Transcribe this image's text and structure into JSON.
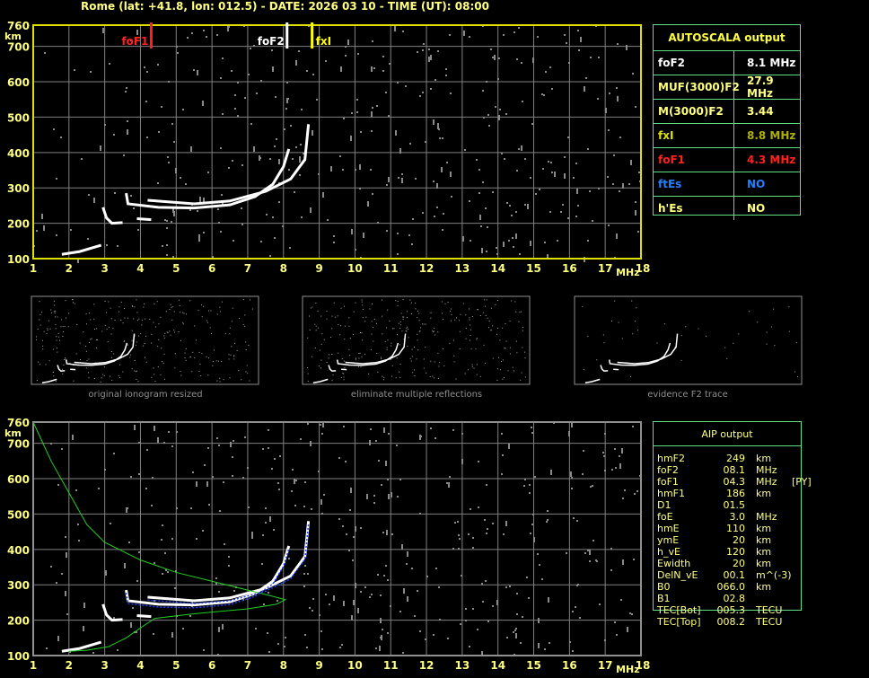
{
  "title": "Rome (lat: +41.8, lon: 012.5) - DATE: 2026 03 10 - TIME (UT): 08:00",
  "autoscala": {
    "header": "AUTOSCALA output",
    "rows": [
      {
        "label": "foF2",
        "value": "8.1 MHz",
        "label_color": "#ffffff",
        "value_color": "#ffffff"
      },
      {
        "label": "MUF(3000)F2",
        "value": "27.9 MHz",
        "label_color": "#ffff80",
        "value_color": "#ffff80"
      },
      {
        "label": "M(3000)F2",
        "value": "3.44",
        "label_color": "#ffff80",
        "value_color": "#ffff80"
      },
      {
        "label": "fxI",
        "value": "8.8 MHz",
        "label_color": "#e0e000",
        "value_color": "#b0b000"
      },
      {
        "label": "foF1",
        "value": "4.3 MHz",
        "label_color": "#ff2020",
        "value_color": "#ff2020"
      },
      {
        "label": "ftEs",
        "value": "NO",
        "label_color": "#2080ff",
        "value_color": "#2080ff"
      },
      {
        "label": "h'Es",
        "value": "NO",
        "label_color": "#ffff80",
        "value_color": "#ffff80"
      }
    ]
  },
  "aip": {
    "header": "AIP output",
    "rows": [
      [
        "hmF2",
        "249",
        "km",
        ""
      ],
      [
        "foF2",
        "08.1",
        "MHz",
        ""
      ],
      [
        "foF1",
        "04.3",
        "MHz",
        "[PY]"
      ],
      [
        "hmF1",
        "186",
        "km",
        ""
      ],
      [
        "D1",
        "01.5",
        "",
        ""
      ],
      [
        "foE",
        "3.0",
        "MHz",
        ""
      ],
      [
        "hmE",
        "110",
        "km",
        ""
      ],
      [
        "ymE",
        "20",
        "km",
        ""
      ],
      [
        "h_vE",
        "120",
        "km",
        ""
      ],
      [
        "Ewidth",
        "20",
        "km",
        ""
      ],
      [
        "DelN_vE",
        "00.1",
        "m^(-3)",
        ""
      ],
      [
        "B0",
        "066.0",
        "km",
        ""
      ],
      [
        "B1",
        "02.8",
        "",
        ""
      ],
      [
        "TEC[Bot]",
        "005.3",
        "TECU",
        ""
      ],
      [
        "TEC[Top]",
        "008.2",
        "TECU",
        ""
      ]
    ]
  },
  "captions": [
    "original ionogram resized",
    "eliminate multiple reflections",
    "evidence F2 trace"
  ],
  "chart_data": [
    {
      "type": "scatter",
      "name_top": "",
      "xlabel": "MHz",
      "ylabel": "km",
      "xlim": [
        1,
        18
      ],
      "ylim": [
        100,
        760
      ],
      "xticks": [
        "1",
        "2",
        "3",
        "4",
        "5",
        "6",
        "7",
        "8",
        "9",
        "10",
        "11",
        "12",
        "13",
        "14",
        "15",
        "16",
        "17",
        "18"
      ],
      "yticks": [
        "100",
        "200",
        "300",
        "400",
        "500",
        "600",
        "700",
        "760"
      ],
      "grid": true,
      "markers": [
        {
          "label": "foF1",
          "freq": 4.3,
          "color": "#ff2020"
        },
        {
          "label": "foF2",
          "freq": 8.1,
          "color": "#ffffff"
        },
        {
          "label": "fxI",
          "freq": 8.8,
          "color": "#ffff00"
        }
      ],
      "traces": [
        [
          [
            1.8,
            112
          ],
          [
            2.3,
            120
          ],
          [
            2.9,
            138
          ]
        ],
        [
          [
            2.95,
            245
          ],
          [
            3.05,
            215
          ],
          [
            3.2,
            200
          ],
          [
            3.5,
            202
          ]
        ],
        [
          [
            3.6,
            285
          ],
          [
            3.65,
            255
          ],
          [
            4.5,
            245
          ],
          [
            5.5,
            243
          ],
          [
            6.5,
            252
          ],
          [
            7.2,
            275
          ],
          [
            7.7,
            310
          ],
          [
            8.0,
            360
          ],
          [
            8.15,
            410
          ]
        ],
        [
          [
            4.2,
            265
          ],
          [
            5.5,
            255
          ],
          [
            6.5,
            263
          ],
          [
            7.5,
            290
          ],
          [
            8.2,
            325
          ],
          [
            8.6,
            380
          ],
          [
            8.7,
            480
          ]
        ],
        [
          [
            3.9,
            213
          ],
          [
            4.3,
            210
          ]
        ]
      ]
    },
    {
      "type": "line",
      "xlabel": "MHz",
      "ylabel": "km",
      "xlim": [
        1,
        18
      ],
      "ylim": [
        100,
        760
      ],
      "grid": true,
      "profile": [
        [
          1,
          760
        ],
        [
          1.5,
          650
        ],
        [
          2,
          560
        ],
        [
          2.5,
          470
        ],
        [
          3,
          420
        ],
        [
          4,
          370
        ],
        [
          5,
          335
        ],
        [
          6,
          310
        ],
        [
          7,
          285
        ],
        [
          7.6,
          270
        ],
        [
          8.05,
          258
        ],
        [
          7.8,
          245
        ],
        [
          7,
          232
        ],
        [
          5.5,
          218
        ],
        [
          4.4,
          205
        ],
        [
          4.1,
          185
        ],
        [
          3.6,
          150
        ],
        [
          3.1,
          125
        ],
        [
          2.5,
          115
        ],
        [
          2,
          112
        ]
      ],
      "profile_color": "#20d020",
      "fit_color": "#2040ff"
    }
  ]
}
